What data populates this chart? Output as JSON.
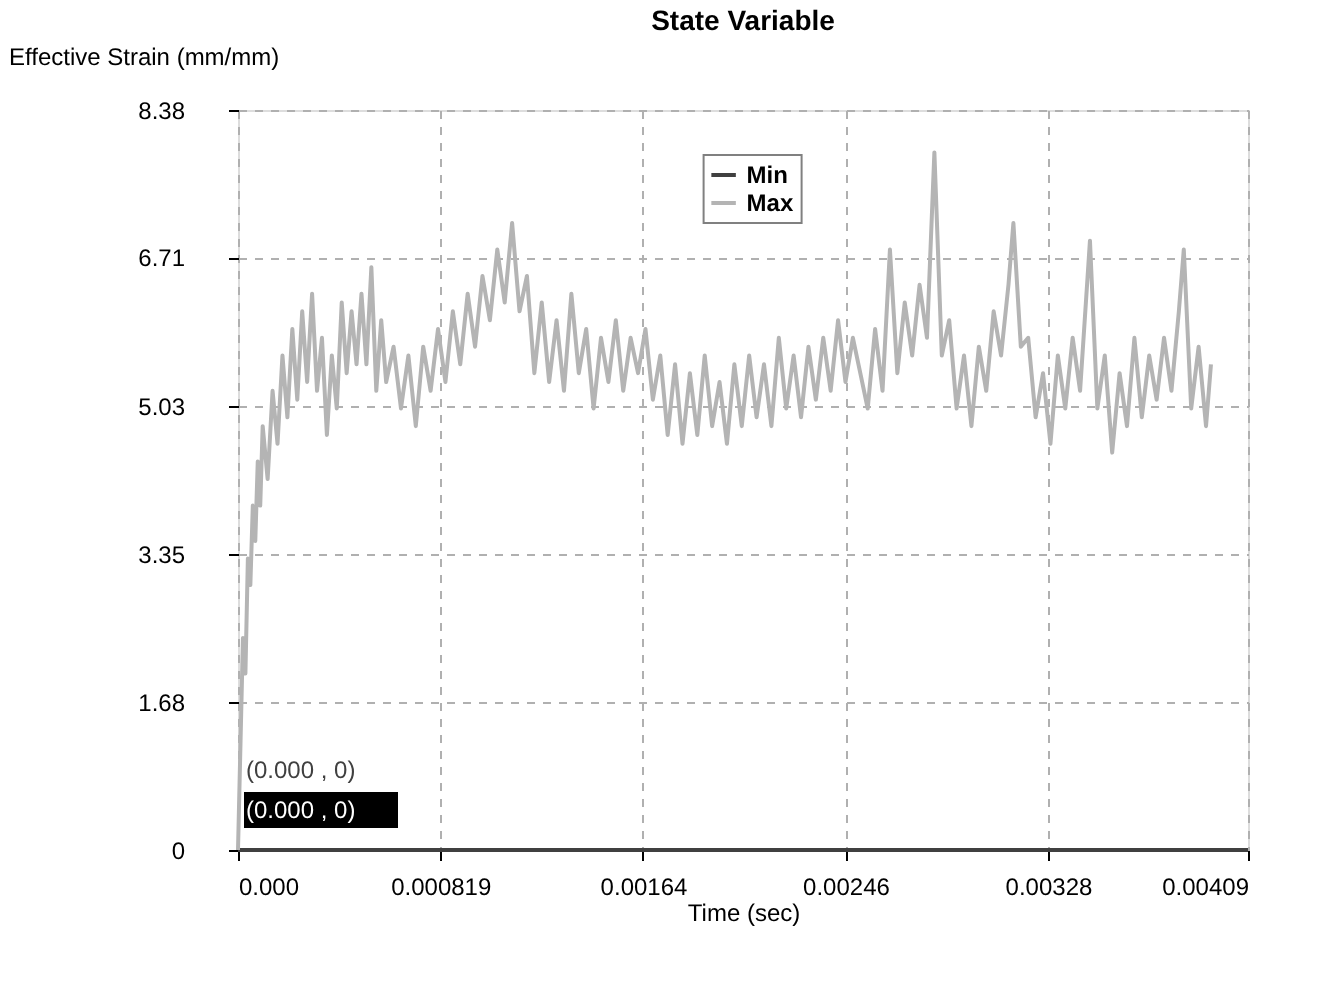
{
  "chart_data": {
    "type": "line",
    "title": "State Variable",
    "xlabel": "Time (sec)",
    "ylabel": "Effective Strain (mm/mm)",
    "xlim": [
      0,
      0.00409
    ],
    "ylim": [
      0,
      8.38
    ],
    "xticks": [
      {
        "value": 0,
        "label": "0.000"
      },
      0.000819,
      0.00164,
      0.00246,
      0.00328,
      0.00409
    ],
    "yticks": [
      0,
      1.68,
      3.35,
      5.03,
      6.71,
      8.38
    ],
    "grid": true,
    "legend": "top",
    "line_style": "solid",
    "marker": "none",
    "annotations": [
      "(0.000 , 0)",
      "(0.000 , 0)"
    ],
    "series": [
      {
        "name": "Min",
        "color": "#404040",
        "x": [
          0,
          0.00409
        ],
        "values": [
          0,
          0
        ]
      },
      {
        "name": "Max",
        "color": "#b4b4b4",
        "x": [
          0,
          1e-05,
          2e-05,
          3e-05,
          4e-05,
          5e-05,
          6e-05,
          7e-05,
          8e-05,
          9e-05,
          0.0001,
          0.00012,
          0.00014,
          0.00016,
          0.00018,
          0.0002,
          0.00022,
          0.00024,
          0.00026,
          0.00028,
          0.0003,
          0.00032,
          0.00034,
          0.00036,
          0.00038,
          0.0004,
          0.00042,
          0.00044,
          0.00046,
          0.00048,
          0.0005,
          0.00052,
          0.00054,
          0.00056,
          0.00058,
          0.0006,
          0.00063,
          0.00066,
          0.00069,
          0.00072,
          0.00075,
          0.00078,
          0.00081,
          0.00084,
          0.00087,
          0.0009,
          0.00093,
          0.00096,
          0.00099,
          0.00102,
          0.00105,
          0.00108,
          0.00111,
          0.00114,
          0.00117,
          0.0012,
          0.00123,
          0.00126,
          0.00129,
          0.00132,
          0.00135,
          0.00138,
          0.00141,
          0.00144,
          0.00147,
          0.0015,
          0.00153,
          0.00156,
          0.00159,
          0.00162,
          0.00165,
          0.00168,
          0.00171,
          0.00174,
          0.00177,
          0.0018,
          0.00183,
          0.00186,
          0.00189,
          0.00192,
          0.00195,
          0.00198,
          0.00201,
          0.00204,
          0.00207,
          0.0021,
          0.00213,
          0.00216,
          0.00219,
          0.00222,
          0.00225,
          0.00228,
          0.00231,
          0.00234,
          0.00237,
          0.0024,
          0.00243,
          0.00246,
          0.00249,
          0.00252,
          0.00255,
          0.00258,
          0.00261,
          0.00264,
          0.00267,
          0.0027,
          0.00273,
          0.00276,
          0.00279,
          0.00282,
          0.00285,
          0.00288,
          0.00291,
          0.00294,
          0.00297,
          0.003,
          0.00303,
          0.00306,
          0.00309,
          0.00312,
          0.00314,
          0.00317,
          0.0032,
          0.00323,
          0.00326,
          0.00329,
          0.00332,
          0.00335,
          0.00338,
          0.00341,
          0.00345,
          0.00348,
          0.00351,
          0.00354,
          0.00357,
          0.0036,
          0.00363,
          0.00366,
          0.00369,
          0.00372,
          0.00375,
          0.00378,
          0.00381,
          0.00383,
          0.00386,
          0.00389,
          0.00392,
          0.00394
        ],
        "values": [
          0,
          1.2,
          2.4,
          2.0,
          3.3,
          3.0,
          3.9,
          3.5,
          4.4,
          3.9,
          4.8,
          4.2,
          5.2,
          4.6,
          5.6,
          4.9,
          5.9,
          5.1,
          6.1,
          5.3,
          6.3,
          5.2,
          5.8,
          4.7,
          5.6,
          5.0,
          6.2,
          5.4,
          6.1,
          5.5,
          6.3,
          5.5,
          6.6,
          5.2,
          6.0,
          5.3,
          5.7,
          5.0,
          5.6,
          4.8,
          5.7,
          5.2,
          5.9,
          5.3,
          6.1,
          5.5,
          6.3,
          5.7,
          6.5,
          6.0,
          6.8,
          6.2,
          7.1,
          6.1,
          6.5,
          5.4,
          6.2,
          5.3,
          6.0,
          5.2,
          6.3,
          5.4,
          5.9,
          5.0,
          5.8,
          5.3,
          6.0,
          5.2,
          5.8,
          5.4,
          5.9,
          5.1,
          5.6,
          4.7,
          5.5,
          4.6,
          5.4,
          4.7,
          5.6,
          4.8,
          5.3,
          4.6,
          5.5,
          4.8,
          5.6,
          4.9,
          5.5,
          4.8,
          5.8,
          5.0,
          5.6,
          4.9,
          5.7,
          5.1,
          5.8,
          5.2,
          6.0,
          5.3,
          5.8,
          5.4,
          5.0,
          5.9,
          5.2,
          6.8,
          5.4,
          6.2,
          5.6,
          6.4,
          5.8,
          7.9,
          5.6,
          6.0,
          5.0,
          5.6,
          4.8,
          5.7,
          5.2,
          6.1,
          5.6,
          6.4,
          7.1,
          5.7,
          5.8,
          4.9,
          5.4,
          4.6,
          5.6,
          5.0,
          5.8,
          5.2,
          6.9,
          5.0,
          5.6,
          4.5,
          5.4,
          4.8,
          5.8,
          4.9,
          5.6,
          5.1,
          5.8,
          5.2,
          6.1,
          6.8,
          5.0,
          5.7,
          4.8,
          5.5
        ]
      }
    ]
  }
}
